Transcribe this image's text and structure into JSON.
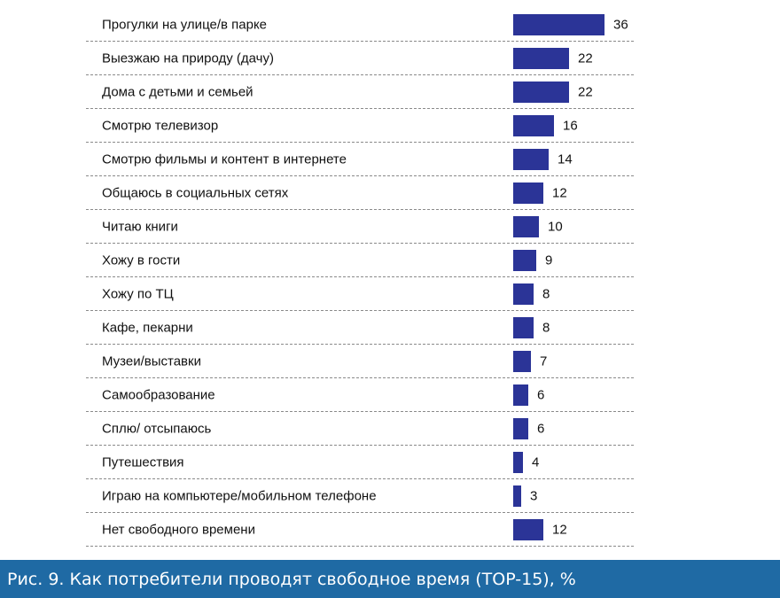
{
  "chart_data": {
    "type": "bar",
    "orientation": "horizontal",
    "categories": [
      "Прогулки на улице/в парке",
      "Выезжаю на природу (дачу)",
      "Дома с детьми и семьей",
      "Смотрю телевизор",
      "Смотрю фильмы и контент в интернете",
      "Общаюсь в социальных сетях",
      "Читаю книги",
      "Хожу в гости",
      "Хожу по ТЦ",
      "Кафе, пекарни",
      "Музеи/выставки",
      "Самообразование",
      "Сплю/ отсыпаюсь",
      "Путешествия",
      "Играю на компьютере/мобильном телефоне",
      "Нет свободного времени"
    ],
    "values": [
      36,
      22,
      22,
      16,
      14,
      12,
      10,
      9,
      8,
      8,
      7,
      6,
      6,
      4,
      3,
      12
    ],
    "title": "",
    "xlabel": "",
    "ylabel": "",
    "xlim": [
      0,
      36
    ],
    "grid": false,
    "bar_color": "#2b3497"
  },
  "caption": {
    "text": "Рис. 9. Как потребители проводят свободное время (TOP-15), %",
    "background": "#1f6aa4"
  }
}
